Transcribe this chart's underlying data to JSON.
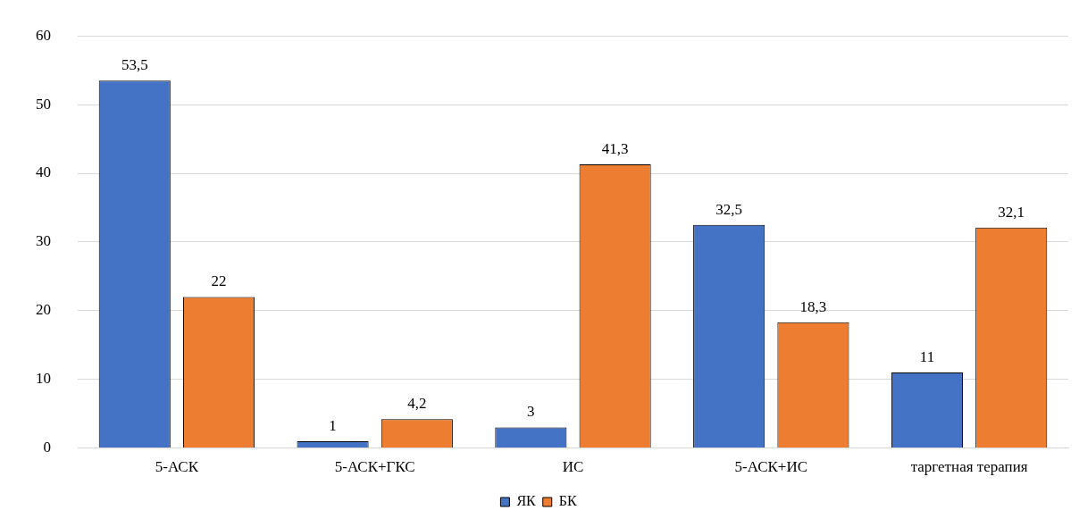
{
  "chart_data": {
    "type": "bar",
    "categories": [
      "5-АСК",
      "5-АСК+ГКС",
      "ИС",
      "5-АСК+ИС",
      "таргетная терапия"
    ],
    "series": [
      {
        "name": "ЯК",
        "color": "#4472c4",
        "values": [
          53.5,
          1,
          3,
          32.5,
          11
        ],
        "value_labels": [
          "53,5",
          "1",
          "3",
          "32,5",
          "11"
        ]
      },
      {
        "name": "БК",
        "color": "#ed7d31",
        "values": [
          22,
          4.2,
          41.3,
          18.3,
          32.1
        ],
        "value_labels": [
          "22",
          "4,2",
          "41,3",
          "18,3",
          "32,1"
        ]
      }
    ],
    "ylim": [
      0,
      60
    ],
    "yticks": [
      0,
      10,
      20,
      30,
      40,
      50,
      60
    ],
    "grid": "y",
    "legend": "bottom"
  }
}
